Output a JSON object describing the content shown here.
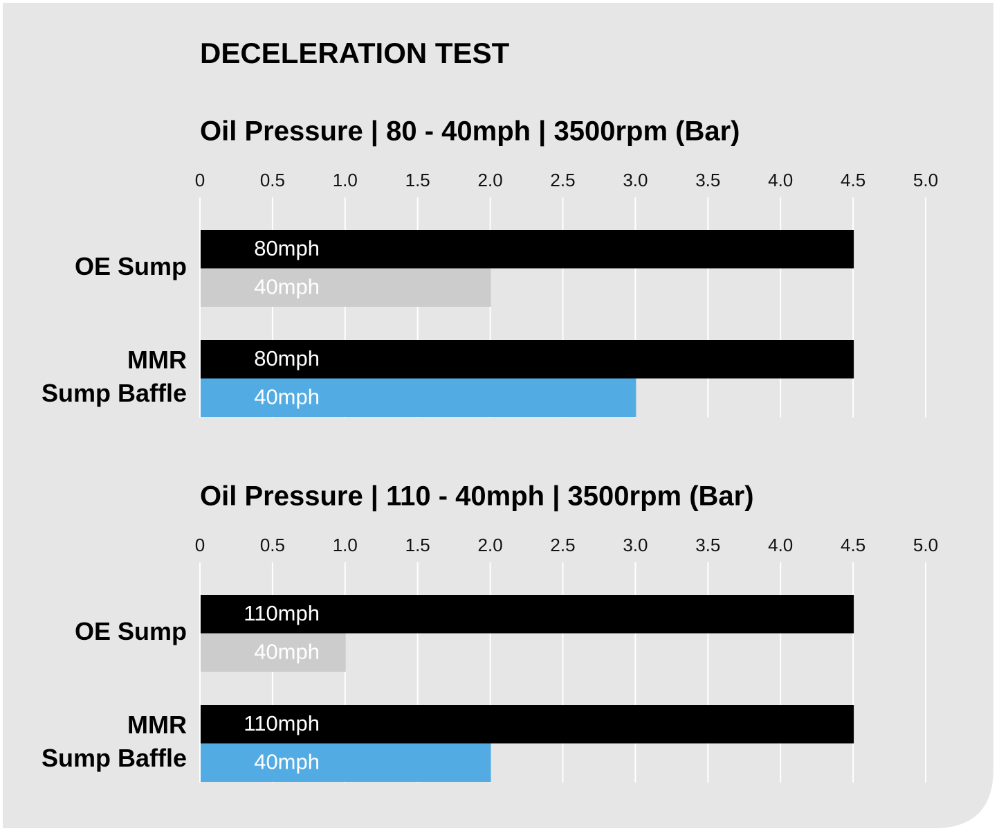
{
  "title": "DECELERATION TEST",
  "chart_data": [
    {
      "type": "bar",
      "orientation": "horizontal",
      "title": "Oil Pressure | 80 - 40mph | 3500rpm (Bar)",
      "categories": [
        "OE Sump",
        "MMR\nSump Baffle"
      ],
      "series": [
        {
          "name": "80mph",
          "color": "#000000",
          "values": [
            4.5,
            4.5
          ]
        },
        {
          "name": "40mph",
          "colors": [
            "#cccccc",
            "#52abe3"
          ],
          "values": [
            2.0,
            3.0
          ]
        }
      ],
      "xlim": [
        0,
        5
      ],
      "xticks": [
        0,
        0.5,
        {
          "value": 1,
          "label": "1.0"
        },
        1.5,
        {
          "value": 2,
          "label": "2.0"
        },
        2.5,
        {
          "value": 3,
          "label": "3.0"
        },
        3.5,
        {
          "value": 4,
          "label": "4.0"
        },
        4.5,
        {
          "value": 5,
          "label": "5.0"
        }
      ],
      "grid": true
    },
    {
      "type": "bar",
      "orientation": "horizontal",
      "title": "Oil Pressure | 110 - 40mph | 3500rpm (Bar)",
      "categories": [
        "OE Sump",
        "MMR\nSump Baffle"
      ],
      "series": [
        {
          "name": "110mph",
          "color": "#000000",
          "values": [
            4.5,
            4.5
          ]
        },
        {
          "name": "40mph",
          "colors": [
            "#cccccc",
            "#52abe3"
          ],
          "values": [
            1.0,
            2.0
          ]
        }
      ],
      "xlim": [
        0,
        5
      ],
      "xticks": [
        0,
        0.5,
        {
          "value": 1,
          "label": "1.0"
        },
        1.5,
        {
          "value": 2,
          "label": "2.0"
        },
        2.5,
        {
          "value": 3,
          "label": "3.0"
        },
        3.5,
        {
          "value": 4,
          "label": "4.0"
        },
        4.5,
        {
          "value": 5,
          "label": "5.0"
        }
      ],
      "grid": true
    }
  ]
}
